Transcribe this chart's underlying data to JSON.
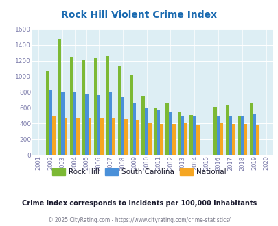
{
  "title": "Rock Hill Violent Crime Index",
  "years": [
    2001,
    2002,
    2003,
    2004,
    2005,
    2006,
    2007,
    2008,
    2009,
    2010,
    2011,
    2012,
    2013,
    2014,
    2015,
    2016,
    2017,
    2018,
    2019,
    2020
  ],
  "rock_hill": [
    null,
    1075,
    1480,
    1250,
    1205,
    1235,
    1255,
    1130,
    1025,
    755,
    600,
    655,
    545,
    510,
    null,
    615,
    635,
    490,
    655,
    null
  ],
  "south_carolina": [
    null,
    825,
    800,
    795,
    775,
    760,
    795,
    730,
    665,
    595,
    565,
    550,
    490,
    490,
    null,
    500,
    500,
    500,
    515,
    null
  ],
  "national": [
    null,
    495,
    470,
    465,
    470,
    470,
    460,
    455,
    445,
    400,
    390,
    395,
    400,
    375,
    null,
    400,
    395,
    395,
    385,
    null
  ],
  "rock_hill_color": "#7cb934",
  "sc_color": "#4a90d9",
  "national_color": "#f5a623",
  "bg_color": "#ddeef4",
  "ylim": [
    0,
    1600
  ],
  "yticks": [
    0,
    200,
    400,
    600,
    800,
    1000,
    1200,
    1400,
    1600
  ],
  "subtitle": "Crime Index corresponds to incidents per 100,000 inhabitants",
  "footer": "© 2025 CityRating.com - https://www.cityrating.com/crime-statistics/",
  "legend_labels": [
    "Rock Hill",
    "South Carolina",
    "National"
  ],
  "title_color": "#1a6ab0",
  "subtitle_color": "#1a1a2e",
  "footer_color": "#7a7a8a"
}
